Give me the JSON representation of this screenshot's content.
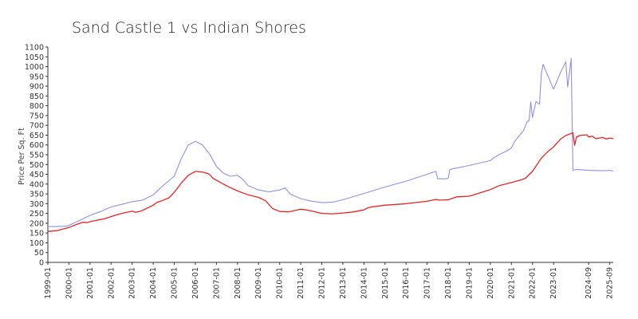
{
  "chart_data": {
    "type": "line",
    "title": "Sand Castle 1 vs Indian Shores",
    "xlabel": "",
    "ylabel": "Price Per Sq. Ft",
    "xlim": [
      "1999-01",
      "2025-11"
    ],
    "ylim": [
      0,
      1100
    ],
    "yticks": [
      0,
      50,
      100,
      150,
      200,
      250,
      300,
      350,
      400,
      450,
      500,
      550,
      600,
      650,
      700,
      750,
      800,
      850,
      900,
      950,
      1000,
      1050,
      1100
    ],
    "xticks": [
      "1999-01",
      "2000-01",
      "2001-01",
      "2002-01",
      "2003-01",
      "2004-01",
      "2005-01",
      "2006-01",
      "2007-01",
      "2008-01",
      "2009-01",
      "2010-01",
      "2011-01",
      "2012-01",
      "2013-01",
      "2014-01",
      "2015-01",
      "2016-01",
      "2017-01",
      "2018-01",
      "2019-01",
      "2020-01",
      "2021-01",
      "2022-01",
      "2023-01",
      "2024-09",
      "2025-09"
    ],
    "grid": false,
    "legend": "none",
    "series": [
      {
        "color": "#8f8ff0",
        "points": [
          [
            "1999-01",
            183
          ],
          [
            "1999-06",
            183
          ],
          [
            "1999-12",
            185
          ],
          [
            "2000-06",
            210
          ],
          [
            "2001-01",
            240
          ],
          [
            "2001-07",
            260
          ],
          [
            "2002-01",
            283
          ],
          [
            "2002-07",
            296
          ],
          [
            "2003-01",
            310
          ],
          [
            "2003-07",
            318
          ],
          [
            "2004-01",
            345
          ],
          [
            "2004-07",
            395
          ],
          [
            "2005-01",
            440
          ],
          [
            "2005-05",
            530
          ],
          [
            "2005-09",
            600
          ],
          [
            "2006-01",
            618
          ],
          [
            "2006-05",
            600
          ],
          [
            "2006-09",
            555
          ],
          [
            "2007-01",
            490
          ],
          [
            "2007-05",
            455
          ],
          [
            "2007-09",
            440
          ],
          [
            "2008-01",
            445
          ],
          [
            "2008-04",
            425
          ],
          [
            "2008-07",
            392
          ],
          [
            "2009-01",
            370
          ],
          [
            "2009-07",
            360
          ],
          [
            "2010-01",
            370
          ],
          [
            "2010-04",
            380
          ],
          [
            "2010-07",
            350
          ],
          [
            "2011-01",
            325
          ],
          [
            "2011-07",
            313
          ],
          [
            "2012-01",
            305
          ],
          [
            "2012-07",
            307
          ],
          [
            "2013-01",
            320
          ],
          [
            "2014-01",
            352
          ],
          [
            "2015-01",
            385
          ],
          [
            "2016-01",
            415
          ],
          [
            "2017-01",
            450
          ],
          [
            "2017-06",
            465
          ],
          [
            "2017-07",
            427
          ],
          [
            "2017-12",
            427
          ],
          [
            "2018-01",
            430
          ],
          [
            "2018-02",
            475
          ],
          [
            "2019-01",
            495
          ],
          [
            "2020-01",
            520
          ],
          [
            "2020-03",
            535
          ],
          [
            "2020-07",
            555
          ],
          [
            "2020-11",
            572
          ],
          [
            "2021-01",
            585
          ],
          [
            "2021-03",
            620
          ],
          [
            "2021-08",
            675
          ],
          [
            "2021-10",
            720
          ],
          [
            "2021-11",
            722
          ],
          [
            "2021-12",
            820
          ],
          [
            "2022-01",
            740
          ],
          [
            "2022-03",
            822
          ],
          [
            "2022-05",
            808
          ],
          [
            "2022-06",
            960
          ],
          [
            "2022-07",
            1012
          ],
          [
            "2023-01",
            885
          ],
          [
            "2023-05",
            970
          ],
          [
            "2023-08",
            1025
          ],
          [
            "2023-09",
            895
          ],
          [
            "2023-11",
            1040
          ],
          [
            "2023-12",
            470
          ],
          [
            "2024-02",
            475
          ],
          [
            "2024-09",
            470
          ],
          [
            "2025-06",
            468
          ],
          [
            "2025-09",
            470
          ],
          [
            "2025-11",
            467
          ]
        ]
      },
      {
        "color": "#ee2222",
        "points": [
          [
            "1999-01",
            158
          ],
          [
            "1999-06",
            162
          ],
          [
            "2000-01",
            178
          ],
          [
            "2000-06",
            196
          ],
          [
            "2000-09",
            205
          ],
          [
            "2000-11",
            203
          ],
          [
            "2001-03",
            212
          ],
          [
            "2001-09",
            222
          ],
          [
            "2002-03",
            240
          ],
          [
            "2002-07",
            250
          ],
          [
            "2003-01",
            262
          ],
          [
            "2003-03",
            256
          ],
          [
            "2003-06",
            262
          ],
          [
            "2003-09",
            275
          ],
          [
            "2004-01",
            292
          ],
          [
            "2004-03",
            306
          ],
          [
            "2004-06",
            315
          ],
          [
            "2004-10",
            330
          ],
          [
            "2005-01",
            358
          ],
          [
            "2005-05",
            405
          ],
          [
            "2005-09",
            445
          ],
          [
            "2006-01",
            465
          ],
          [
            "2006-06",
            460
          ],
          [
            "2006-09",
            450
          ],
          [
            "2006-11",
            430
          ],
          [
            "2007-01",
            420
          ],
          [
            "2007-07",
            390
          ],
          [
            "2008-01",
            365
          ],
          [
            "2008-07",
            345
          ],
          [
            "2009-01",
            332
          ],
          [
            "2009-05",
            315
          ],
          [
            "2009-09",
            275
          ],
          [
            "2010-01",
            260
          ],
          [
            "2010-06",
            258
          ],
          [
            "2011-01",
            272
          ],
          [
            "2011-06",
            265
          ],
          [
            "2012-01",
            250
          ],
          [
            "2012-07",
            248
          ],
          [
            "2013-01",
            252
          ],
          [
            "2013-07",
            258
          ],
          [
            "2014-01",
            268
          ],
          [
            "2014-03",
            278
          ],
          [
            "2014-06",
            284
          ],
          [
            "2015-01",
            292
          ],
          [
            "2016-01",
            300
          ],
          [
            "2017-01",
            312
          ],
          [
            "2017-06",
            322
          ],
          [
            "2017-08",
            318
          ],
          [
            "2018-01",
            320
          ],
          [
            "2018-06",
            335
          ],
          [
            "2019-01",
            338
          ],
          [
            "2019-06",
            352
          ],
          [
            "2020-01",
            372
          ],
          [
            "2020-06",
            392
          ],
          [
            "2021-01",
            408
          ],
          [
            "2021-06",
            420
          ],
          [
            "2021-09",
            430
          ],
          [
            "2022-01",
            465
          ],
          [
            "2022-06",
            532
          ],
          [
            "2022-10",
            568
          ],
          [
            "2023-01",
            590
          ],
          [
            "2023-05",
            630
          ],
          [
            "2023-08",
            648
          ],
          [
            "2023-10",
            655
          ],
          [
            "2023-12",
            662
          ],
          [
            "2024-01",
            598
          ],
          [
            "2024-02",
            640
          ],
          [
            "2024-04",
            648
          ],
          [
            "2024-08",
            652
          ],
          [
            "2024-09",
            640
          ],
          [
            "2024-11",
            645
          ],
          [
            "2025-01",
            632
          ],
          [
            "2025-05",
            638
          ],
          [
            "2025-07",
            630
          ],
          [
            "2025-09",
            635
          ],
          [
            "2025-11",
            632
          ]
        ]
      }
    ]
  }
}
